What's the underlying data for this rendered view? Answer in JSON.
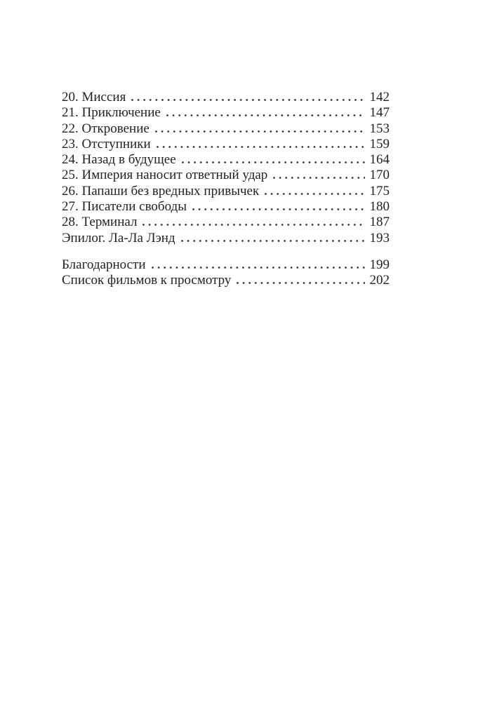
{
  "page": {
    "background_color": "#ffffff",
    "text_color": "#222222",
    "dot_leader_color": "#2a2a2a"
  },
  "toc": {
    "chapters": [
      {
        "label": "20. Миссия",
        "page": "142"
      },
      {
        "label": "21. Приключение",
        "page": "147"
      },
      {
        "label": "22. Откровение",
        "page": "153"
      },
      {
        "label": "23. Отступники",
        "page": "159"
      },
      {
        "label": "24. Назад в будущее",
        "page": "164"
      },
      {
        "label": "25. Империя наносит ответный удар",
        "page": "170"
      },
      {
        "label": "26. Папаши без вредных привычек",
        "page": "175"
      },
      {
        "label": "27. Писатели свободы",
        "page": "180"
      },
      {
        "label": "28. Терминал",
        "page": "187"
      },
      {
        "label": "Эпилог. Ла-Ла Лэнд",
        "page": "193"
      }
    ],
    "back_matter": [
      {
        "label": "Благодарности",
        "page": "199"
      },
      {
        "label": "Список фильмов к просмотру",
        "page": "202"
      }
    ]
  }
}
